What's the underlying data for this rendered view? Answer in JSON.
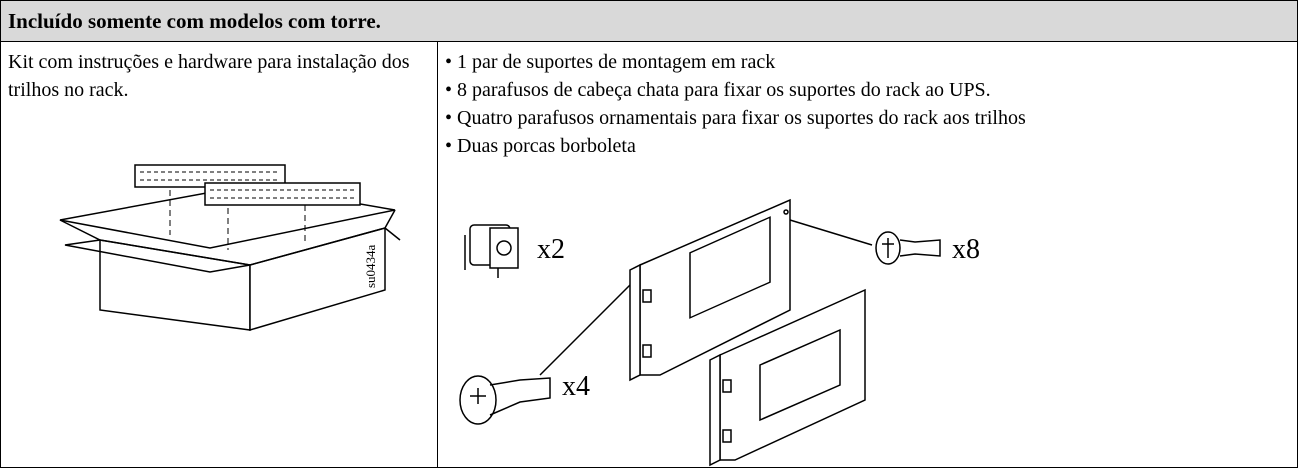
{
  "header": {
    "title": "Incluído somente com modelos com torre."
  },
  "row": {
    "description": "Kit com instruções e hardware para instalação dos trilhos no rack.",
    "figure_label": "su0434a",
    "items": [
      "• 1 par de suportes de montagem em rack",
      "• 8 parafusos de cabeça chata para fixar os suportes do rack ao UPS.",
      "• Quatro parafusos ornamentais para fixar os suportes do rack aos trilhos",
      "• Duas porcas borboleta"
    ],
    "quantities": {
      "cage_nut": "x2",
      "flat_screw": "x8",
      "ornamental_screw": "x4"
    }
  }
}
